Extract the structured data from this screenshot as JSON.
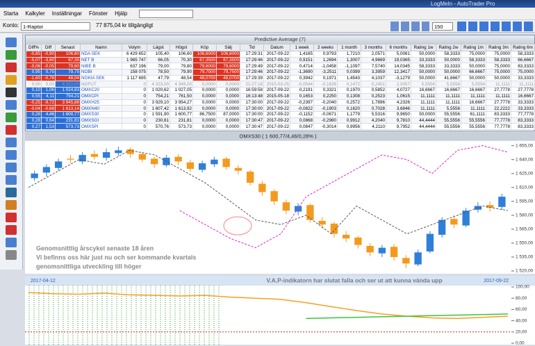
{
  "window": {
    "title": "LogMeIn - AutoTrader Pro"
  },
  "menu": [
    "Starta",
    "Kalkyler",
    "Inställningar",
    "Fönster",
    "Hjälp"
  ],
  "account": {
    "label": "Konto:",
    "name": "1-Raptor",
    "balance": "77 875,04 kr tillgängligt"
  },
  "toolbar": {
    "zoom": "150"
  },
  "table": {
    "title": "Predictive Average (7)",
    "headers": [
      "Diff%",
      "Diff",
      "Senast",
      "Namn",
      "Volym",
      "Lägst",
      "Högst",
      "Köp",
      "Sälj",
      "Tid",
      "Datum",
      "1 week",
      "2 weeks",
      "1 month",
      "3 months",
      "6 months",
      "Rating 1w",
      "Rating 2w",
      "Rating 1m",
      "Rating 3m",
      "Rating 6m"
    ],
    "rows": [
      [
        "-0,85",
        "-0,90",
        "106,60",
        "NDA SEK",
        "6 429 652",
        "105,40",
        "106,60",
        "106,6000",
        "106,6000",
        "17:29:31",
        "2017-09-22",
        "1,4165",
        "0,9793",
        "1,7210",
        "2,0571",
        "5,0061",
        "50,0000",
        "58,3333",
        "75,0000",
        "75,0000",
        "58,3333"
      ],
      [
        "-5,07",
        "-3,60",
        "67,35",
        "NET B",
        "1 965 747",
        "66,05",
        "70,30",
        "67,3500",
        "67,3500",
        "17:29:46",
        "2017-09-22",
        "0,9151",
        "1,2694",
        "1,3007",
        "4,9669",
        "19,0365",
        "33,3333",
        "50,0000",
        "58,3333",
        "58,3333",
        "66,6667"
      ],
      [
        "-0,06",
        "-0,05",
        "79,60",
        "NIBE B",
        "637 196",
        "79,00",
        "79,80",
        "79,6000",
        "79,6000",
        "17:29:49",
        "2017-09-22",
        "0,4714",
        "-1,0458",
        "-1,1097",
        "7,5740",
        "14,0345",
        "58,3333",
        "33,3333",
        "50,0000",
        "75,0000",
        "83,3333"
      ],
      [
        "0,95",
        "0,75",
        "79,75",
        "NOBI",
        "158 075",
        "78,50",
        "79,90",
        "79,7500",
        "79,7500",
        "17:29:46",
        "2017-09-22",
        "-1,3690",
        "-3,2511",
        "0,0399",
        "3,3959",
        "12,3417",
        "50,0000",
        "50,0000",
        "66,6667",
        "75,0000",
        "75,0000"
      ],
      [
        "-1,60",
        "-0,78",
        "48,04",
        "NOKIA SEK",
        "1 117 695",
        "47,79",
        "48,54",
        "48,0700",
        "48,0700",
        "17:29:39",
        "2017-09-22",
        "0,3942",
        "0,1971",
        "1,4543",
        "4,1037",
        "-3,1279",
        "50,0000",
        "41,6667",
        "50,0000",
        "50,0000",
        "33,3333"
      ],
      [
        "0,00",
        "0,00",
        "4 323,00",
        "NOFUT",
        "0",
        "4 323,00",
        "4 349,00",
        "0,0000",
        "0,0000",
        "21:27:18",
        "2015-03-25",
        "-0,0544",
        "-0,1626",
        "0,1472",
        "0,2451",
        "2,0057",
        "5,5556",
        "5,5556",
        "5,5556",
        "11,1111",
        "11,1111"
      ],
      [
        "0,10",
        "1,06",
        "1 024,83",
        "OMXC20",
        "0",
        "1 020,62",
        "1 027,05",
        "0,0000",
        "0,0000",
        "16:59:58",
        "2017-09-22",
        "0,2191",
        "0,3321",
        "0,1970",
        "0,5852",
        "4,0727",
        "16,6667",
        "16,6667",
        "16,6667",
        "27,7778",
        "27,7778"
      ],
      [
        "0,55",
        "4,11",
        "754,21",
        "OMXCPI",
        "0",
        "754,21",
        "761,50",
        "0,0000",
        "0,0000",
        "16:13:48",
        "2015-05-18",
        "0,1653",
        "0,2250",
        "0,1308",
        "0,2523",
        "1,0615",
        "11,1111",
        "11,1111",
        "11,1111",
        "11,1111",
        "16,6667"
      ],
      [
        "-0,25",
        "-9,72",
        "3 945,88",
        "OMXH25",
        "0",
        "3 929,10",
        "3 954,27",
        "0,0000",
        "0,0000",
        "17:30:00",
        "2017-09-22",
        "-0,2397",
        "-0,2040",
        "0,2572",
        "1,7896",
        "4,2326",
        "11,1111",
        "11,1111",
        "16,6667",
        "27,7778",
        "33,3333"
      ],
      [
        "-0,04",
        "-0,68",
        "1 613,14",
        "OMXN40",
        "0",
        "1 607,42",
        "1 613,92",
        "0,0000",
        "0,0000",
        "17:30:00",
        "2017-09-22",
        "-0,0822",
        "-0,1903",
        "0,1620",
        "0,7028",
        "3,6846",
        "11,1111",
        "5,5556",
        "11,1111",
        "22,2222",
        "33,3333"
      ],
      [
        "0,28",
        "4,46",
        "1 600,77",
        "OMXS30",
        "0",
        "1 591,90",
        "1 600,77",
        "86,7500",
        "87,0000",
        "17:30:00",
        "2017-09-22",
        "-0,1152",
        "-0,0671",
        "1,1779",
        "5,5316",
        "9,9650",
        "50,0000",
        "55,5556",
        "61,1111",
        "83,3333",
        "77,7778"
      ],
      [
        "0,28",
        "0,64",
        "231,81",
        "OMXSGI",
        "0",
        "230,61",
        "231,81",
        "0,0000",
        "0,0000",
        "17:30:47",
        "2017-09-22",
        "0,0868",
        "-0,2980",
        "0,9912",
        "4,2040",
        "9,7810",
        "44,4444",
        "55,5556",
        "55,5556",
        "77,7778",
        "83,3333"
      ],
      [
        "0,27",
        "1,53",
        "573,73",
        "OMXSPI",
        "0",
        "570,76",
        "573,73",
        "0,0000",
        "0,0000",
        "17:30:47",
        "2017-09-22",
        "0,0847",
        "-0,3014",
        "0,9956",
        "4,2110",
        "9,7952",
        "44,4444",
        "55,5556",
        "55,5556",
        "77,7778",
        "83,3333"
      ]
    ]
  },
  "chart_data": [
    {
      "type": "candlestick",
      "title": "OMXS30 ( 1 600,77/4,46/0,28% )",
      "open": [
        1620,
        1626,
        1631,
        1641,
        1638,
        1646,
        1642,
        1647,
        1651,
        1646,
        1641,
        1634,
        1643,
        1637,
        1629,
        1635,
        1641,
        1631,
        1627,
        1614,
        1606,
        1594,
        1584,
        1591,
        1574,
        1571,
        1559,
        1556,
        1547,
        1539,
        1546,
        1534,
        1527,
        1541,
        1559,
        1576,
        1569,
        1586,
        1591,
        1589
      ],
      "high": [
        1628,
        1635,
        1641,
        1645,
        1648,
        1650,
        1652,
        1654,
        1653,
        1648,
        1643,
        1645,
        1646,
        1640,
        1639,
        1643,
        1643,
        1634,
        1629,
        1617,
        1608,
        1597,
        1593,
        1593,
        1578,
        1573,
        1563,
        1558,
        1550,
        1548,
        1549,
        1537,
        1543,
        1563,
        1578,
        1580,
        1588,
        1594,
        1595,
        1603
      ],
      "low": [
        1617,
        1622,
        1628,
        1636,
        1635,
        1640,
        1639,
        1644,
        1642,
        1637,
        1631,
        1632,
        1634,
        1627,
        1626,
        1632,
        1629,
        1624,
        1612,
        1601,
        1591,
        1581,
        1580,
        1572,
        1566,
        1556,
        1551,
        1544,
        1536,
        1535,
        1531,
        1523,
        1525,
        1539,
        1556,
        1566,
        1567,
        1583,
        1584,
        1586
      ],
      "close": [
        1625,
        1632,
        1638,
        1640,
        1645,
        1643,
        1648,
        1650,
        1646,
        1640,
        1635,
        1642,
        1638,
        1630,
        1636,
        1640,
        1632,
        1628,
        1615,
        1605,
        1595,
        1585,
        1590,
        1575,
        1570,
        1560,
        1555,
        1548,
        1540,
        1545,
        1535,
        1528,
        1540,
        1560,
        1575,
        1570,
        1585,
        1590,
        1588,
        1600
      ],
      "up_color": "#2f7fd8",
      "down_color": "#f39a1e",
      "lines": [
        {
          "color": "#555555",
          "values": [
            1610,
            1625,
            1640,
            1635,
            1650,
            1645,
            1630,
            1615,
            1595,
            1575,
            1570,
            1580,
            1560,
            1590,
            1575,
            1560,
            1570,
            1580,
            1590,
            1585
          ]
        },
        {
          "color": "#e020d0",
          "values": [
            null,
            null,
            null,
            null,
            null,
            null,
            1585,
            1570,
            1555,
            1545,
            1560,
            1600,
            1615,
            1630,
            1645,
            1640,
            1625,
            1650,
            1655,
            1648
          ]
        }
      ],
      "ylim": [
        1517,
        1660
      ],
      "yticks": [
        {
          "value": 1655,
          "label": "1 655,00"
        },
        {
          "value": 1640,
          "label": "1 640,00"
        },
        {
          "value": 1625,
          "label": "1 625,00"
        },
        {
          "value": 1610,
          "label": "1 610,00"
        },
        {
          "value": 1595,
          "label": "1 595,00"
        },
        {
          "value": 1580,
          "label": "1 580,00"
        },
        {
          "value": 1565,
          "label": "1 565,00"
        },
        {
          "value": 1550,
          "label": "1 550,00"
        },
        {
          "value": 1535,
          "label": "1 535,00"
        },
        {
          "value": 1520,
          "label": "1 520,00"
        }
      ],
      "annotations": [
        "Genomsnittlig årscykel senaste 18 åren",
        "Vi befinns oss här just nu och ser kommande kvartals",
        "genomsnittliga utveckling till höger"
      ]
    },
    {
      "type": "line",
      "title": "V.A.P-indikatorn har slutat falla och ser ut att kunna vända upp",
      "x_labels": [
        "2017-04-12",
        "2017-09-22"
      ],
      "series": [
        {
          "color": "#f5a020",
          "values": [
            90,
            88,
            87,
            89,
            86,
            85,
            84,
            85,
            82,
            80,
            78,
            72,
            65,
            58,
            52,
            48,
            45,
            44,
            46,
            48
          ]
        },
        {
          "color": "#3ac43a",
          "values": [
            null,
            null,
            null,
            null,
            null,
            null,
            null,
            null,
            null,
            null,
            null,
            44,
            45,
            46,
            47,
            48,
            49,
            50,
            51,
            52
          ]
        }
      ],
      "hline": {
        "value": 20,
        "color": "#d02020"
      },
      "ylim": [
        0,
        100
      ],
      "yticks": [
        {
          "value": 100,
          "label": "100,00"
        },
        {
          "value": 80,
          "label": "80,00"
        },
        {
          "value": 60,
          "label": "60,00"
        },
        {
          "value": 40,
          "label": "40,00"
        },
        {
          "value": 20,
          "label": "20,00"
        },
        {
          "value": 0,
          "label": "0,00"
        }
      ]
    }
  ]
}
